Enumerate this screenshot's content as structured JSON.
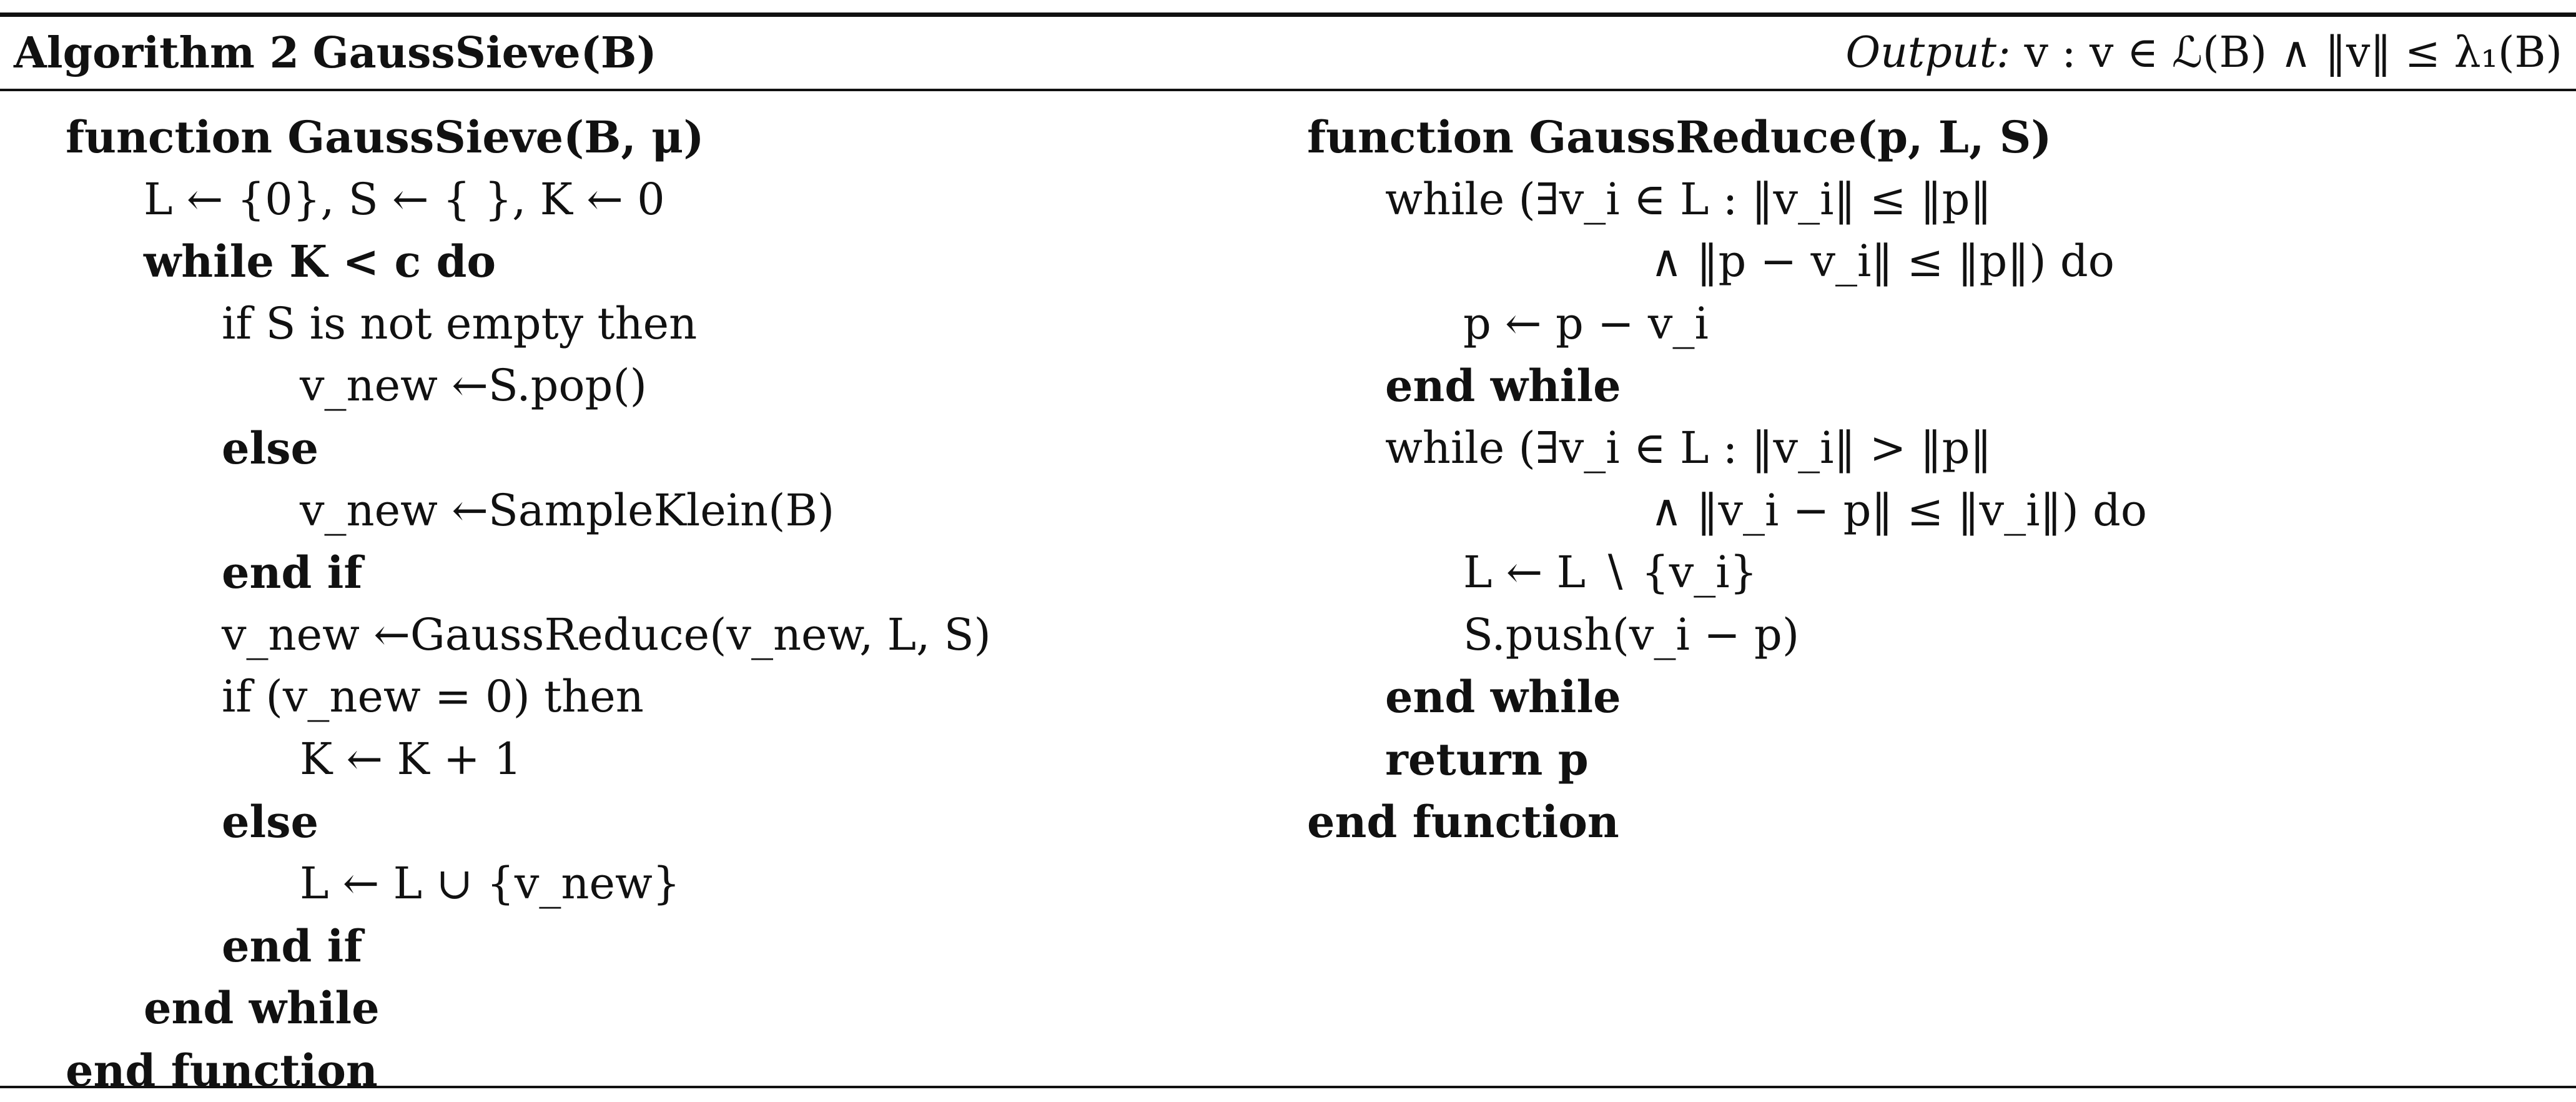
{
  "header": {
    "algorithm_label": "Algorithm 2",
    "algorithm_name": "GaussSieve(B)",
    "output_label": "Output:",
    "output_text": "v : v ∈ ℒ(B) ∧ ‖v‖ ≤ λ₁(B)"
  },
  "left_lines": [
    "function GaussSieve(B, μ)",
    "L ← {0}, S ← { }, K ← 0",
    "while K < c do",
    "if S is not empty then",
    "v_new ←S.pop()",
    "else",
    "v_new ←SampleKlein(B)",
    "end if",
    "v_new ←GaussReduce(v_new, L, S)",
    "if (v_new = 0) then",
    "K ← K + 1",
    "else",
    "L ← L ∪ {v_new}",
    "end if",
    "end while",
    "end function"
  ],
  "right_lines": [
    "function GaussReduce(p, L, S)",
    "while (∃v_i ∈ L : ‖v_i‖ ≤ ‖p‖",
    "∧ ‖p − v_i‖ ≤ ‖p‖) do",
    "p ← p − v_i",
    "end while",
    "while (∃v_i ∈ L : ‖v_i‖ > ‖p‖",
    "∧ ‖v_i − p‖ ≤ ‖v_i‖) do",
    "L ← L ∖ {v_i}",
    "S.push(v_i − p)",
    "end while",
    "return p",
    "end function"
  ]
}
